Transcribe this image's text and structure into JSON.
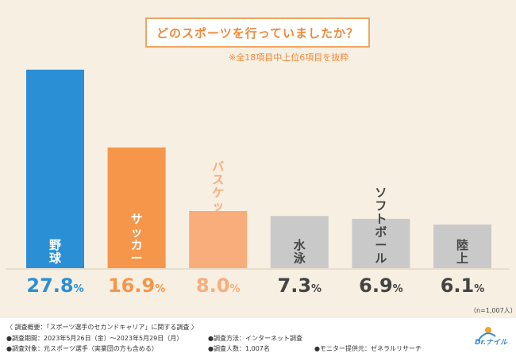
{
  "header": {
    "title": "どのスポーツを行っていましたか？",
    "subtitle": "※全18項目中上位6項目を抜粋"
  },
  "chart_data": {
    "type": "bar",
    "title": "どのスポーツを行っていましたか？",
    "categories": [
      "野球",
      "サッカー",
      "バスケットボール",
      "水泳",
      "ソフトボール",
      "陸上"
    ],
    "values": [
      27.8,
      16.9,
      8.0,
      7.3,
      6.9,
      6.1
    ],
    "value_labels": [
      "27.8%",
      "16.9%",
      "8.0%",
      "7.3%",
      "6.9%",
      "6.1%"
    ],
    "bar_colors": [
      "#2b8fd6",
      "#f5964a",
      "#f8ad7a",
      "#c9c9c9",
      "#c9c9c9",
      "#c9c9c9"
    ],
    "label_colors": [
      "#2b8fd6",
      "#f5964a",
      "#f8ad7a",
      "#444444",
      "#444444",
      "#444444"
    ],
    "ylim": [
      0,
      30
    ],
    "grid": false,
    "legend": "none",
    "n_label": "（n=1,007人）"
  },
  "footer": {
    "line1": "〈 調査概要：「スポーツ選手のセカンドキャリア」に関する調査 〉",
    "line2a": "●調査期間：2023年5月26日（金）〜2023年5月29日（月）",
    "line2b": "●調査方法：インターネット調査",
    "line3a": "●調査対象：元スポーツ選手（実業団の方も含める）",
    "line3b": "●調査人数：1,007名",
    "line3c": "●モニター提供元：ゼネラルリサーチ",
    "logo": "Dr.ナイル"
  },
  "colors": {
    "background": "#f7efe2",
    "accent": "#f0893a",
    "blue": "#2b8fd6"
  }
}
